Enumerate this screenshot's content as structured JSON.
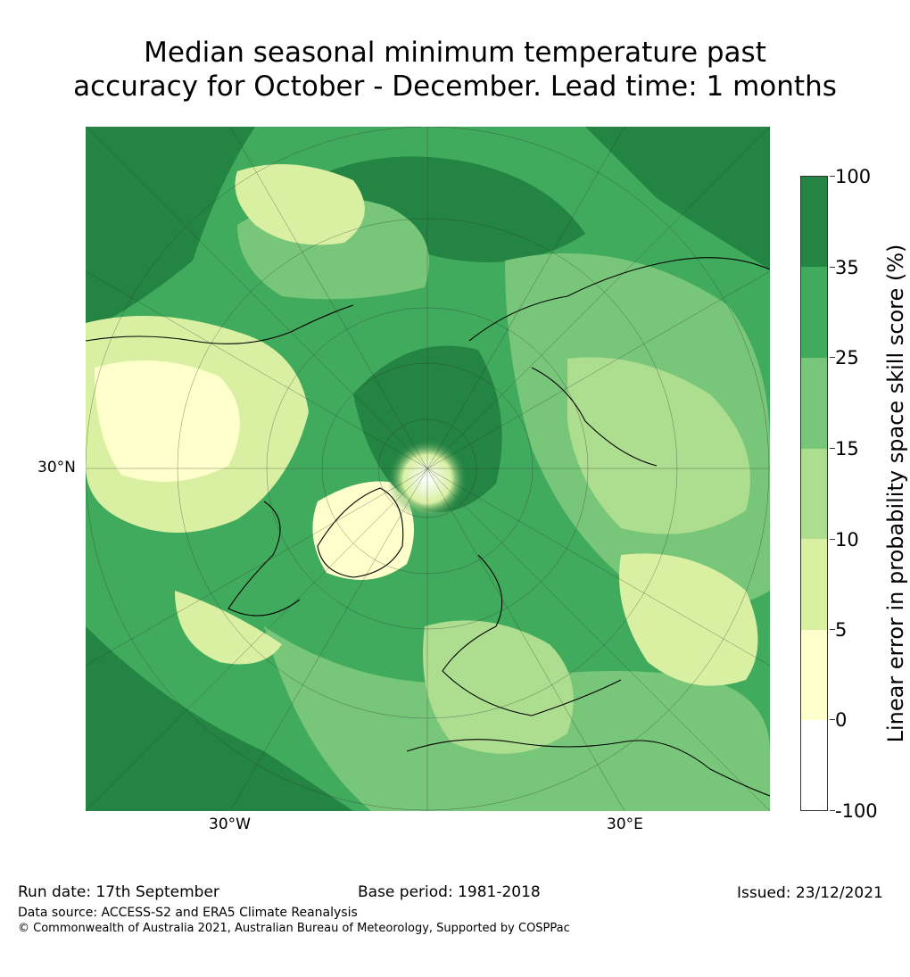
{
  "title": {
    "line1": "Median seasonal minimum temperature past",
    "line2": "accuracy for October - December. Lead time: 1 months"
  },
  "map": {
    "lat_label": "30°N",
    "lon_labels": [
      "30°W",
      "30°E"
    ]
  },
  "colorbar": {
    "title": "Linear error in probability space skill score (%)",
    "tick_labels": [
      "100",
      "35",
      "25",
      "15",
      "10",
      "5",
      "0",
      "-100"
    ],
    "colors": [
      "#238443",
      "#41ab5d",
      "#78c679",
      "#addd8e",
      "#d9f0a3",
      "#ffffcc",
      "#ffffff"
    ]
  },
  "footer": {
    "run_date": "Run date: 17th September",
    "base_period": "Base period: 1981-2018",
    "issued": "Issued: 23/12/2021",
    "data_source": "Data source: ACCESS-S2 and ERA5 Climate Reanalysis",
    "copyright": "© Commonwealth of Australia 2021, Australian Bureau of Meteorology, Supported by COSPPac"
  }
}
